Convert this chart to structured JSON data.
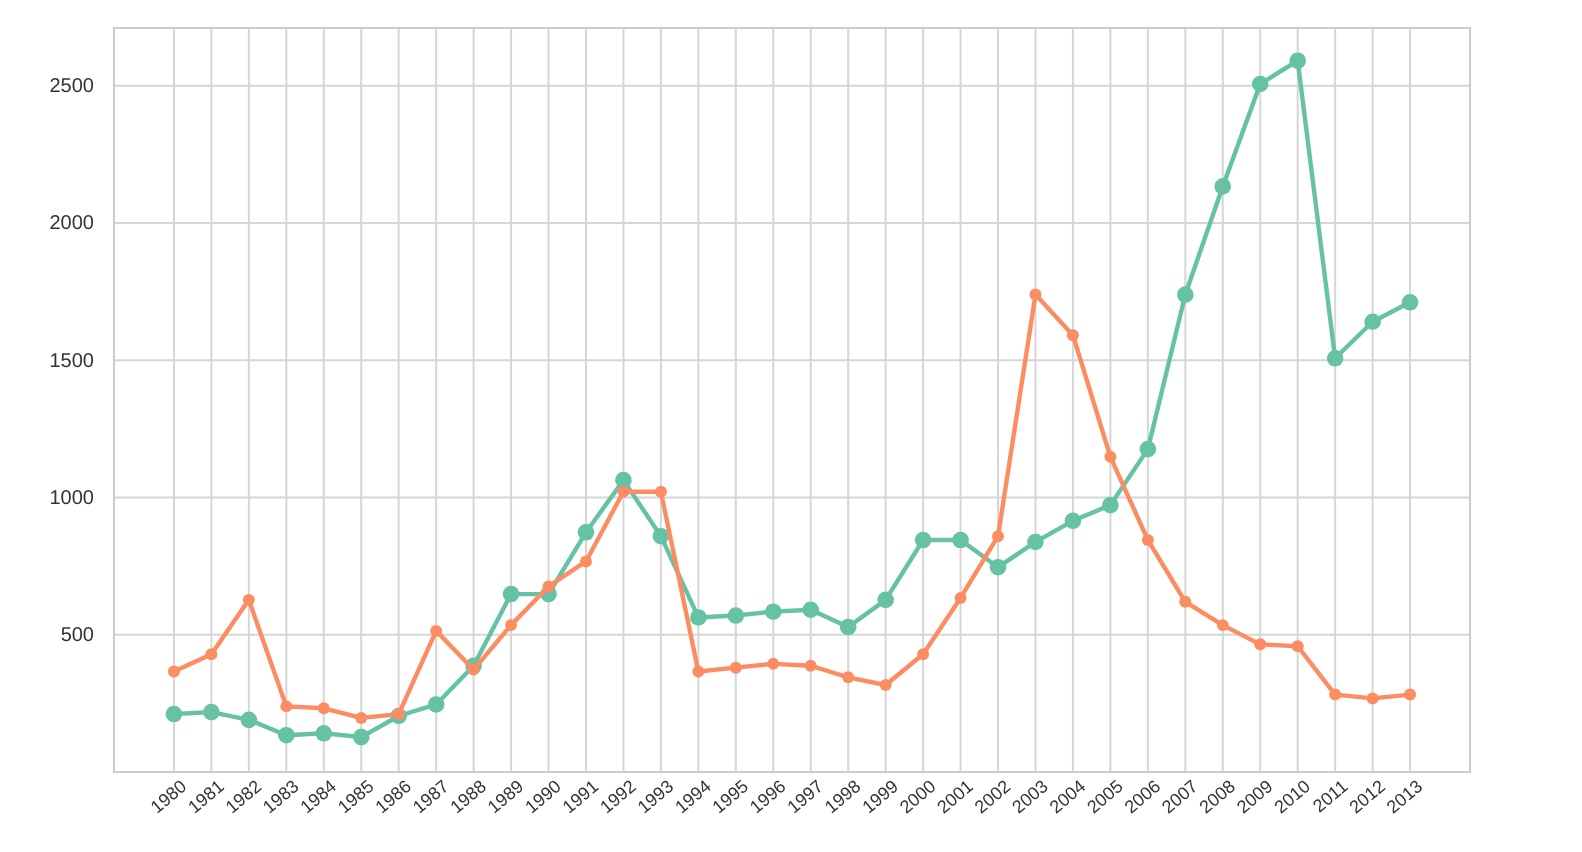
{
  "chart_data": {
    "type": "line",
    "categories": [
      "1980",
      "1981",
      "1982",
      "1983",
      "1984",
      "1985",
      "1986",
      "1987",
      "1988",
      "1989",
      "1990",
      "1991",
      "1992",
      "1993",
      "1994",
      "1995",
      "1996",
      "1997",
      "1998",
      "1999",
      "2000",
      "2001",
      "2002",
      "2003",
      "2004",
      "2005",
      "2006",
      "2007",
      "2008",
      "2009",
      "2010",
      "2011",
      "2012",
      "2013"
    ],
    "series": [
      {
        "color": "#66c2a5",
        "values": [
          211,
          218,
          190,
          134,
          141,
          127,
          204,
          246,
          387,
          648,
          648,
          873,
          1063,
          859,
          563,
          570,
          584,
          591,
          528,
          627,
          845,
          845,
          746,
          838,
          915,
          972,
          1176,
          1739,
          2133,
          2506,
          2591,
          1507,
          1640,
          1711
        ]
      },
      {
        "color": "#fc8d62",
        "values": [
          366,
          429,
          627,
          239,
          232,
          197,
          211,
          514,
          373,
          535,
          676,
          767,
          1021,
          1021,
          366,
          380,
          394,
          387,
          345,
          317,
          429,
          634,
          859,
          1739,
          1591,
          1148,
          845,
          620,
          535,
          465,
          458,
          282,
          268,
          282
        ]
      }
    ],
    "ylim": [
      0,
      2710
    ],
    "yticks": [
      500,
      1000,
      1500,
      2000,
      2500
    ],
    "grid": true,
    "marker": "circle",
    "line_style": "solid"
  }
}
